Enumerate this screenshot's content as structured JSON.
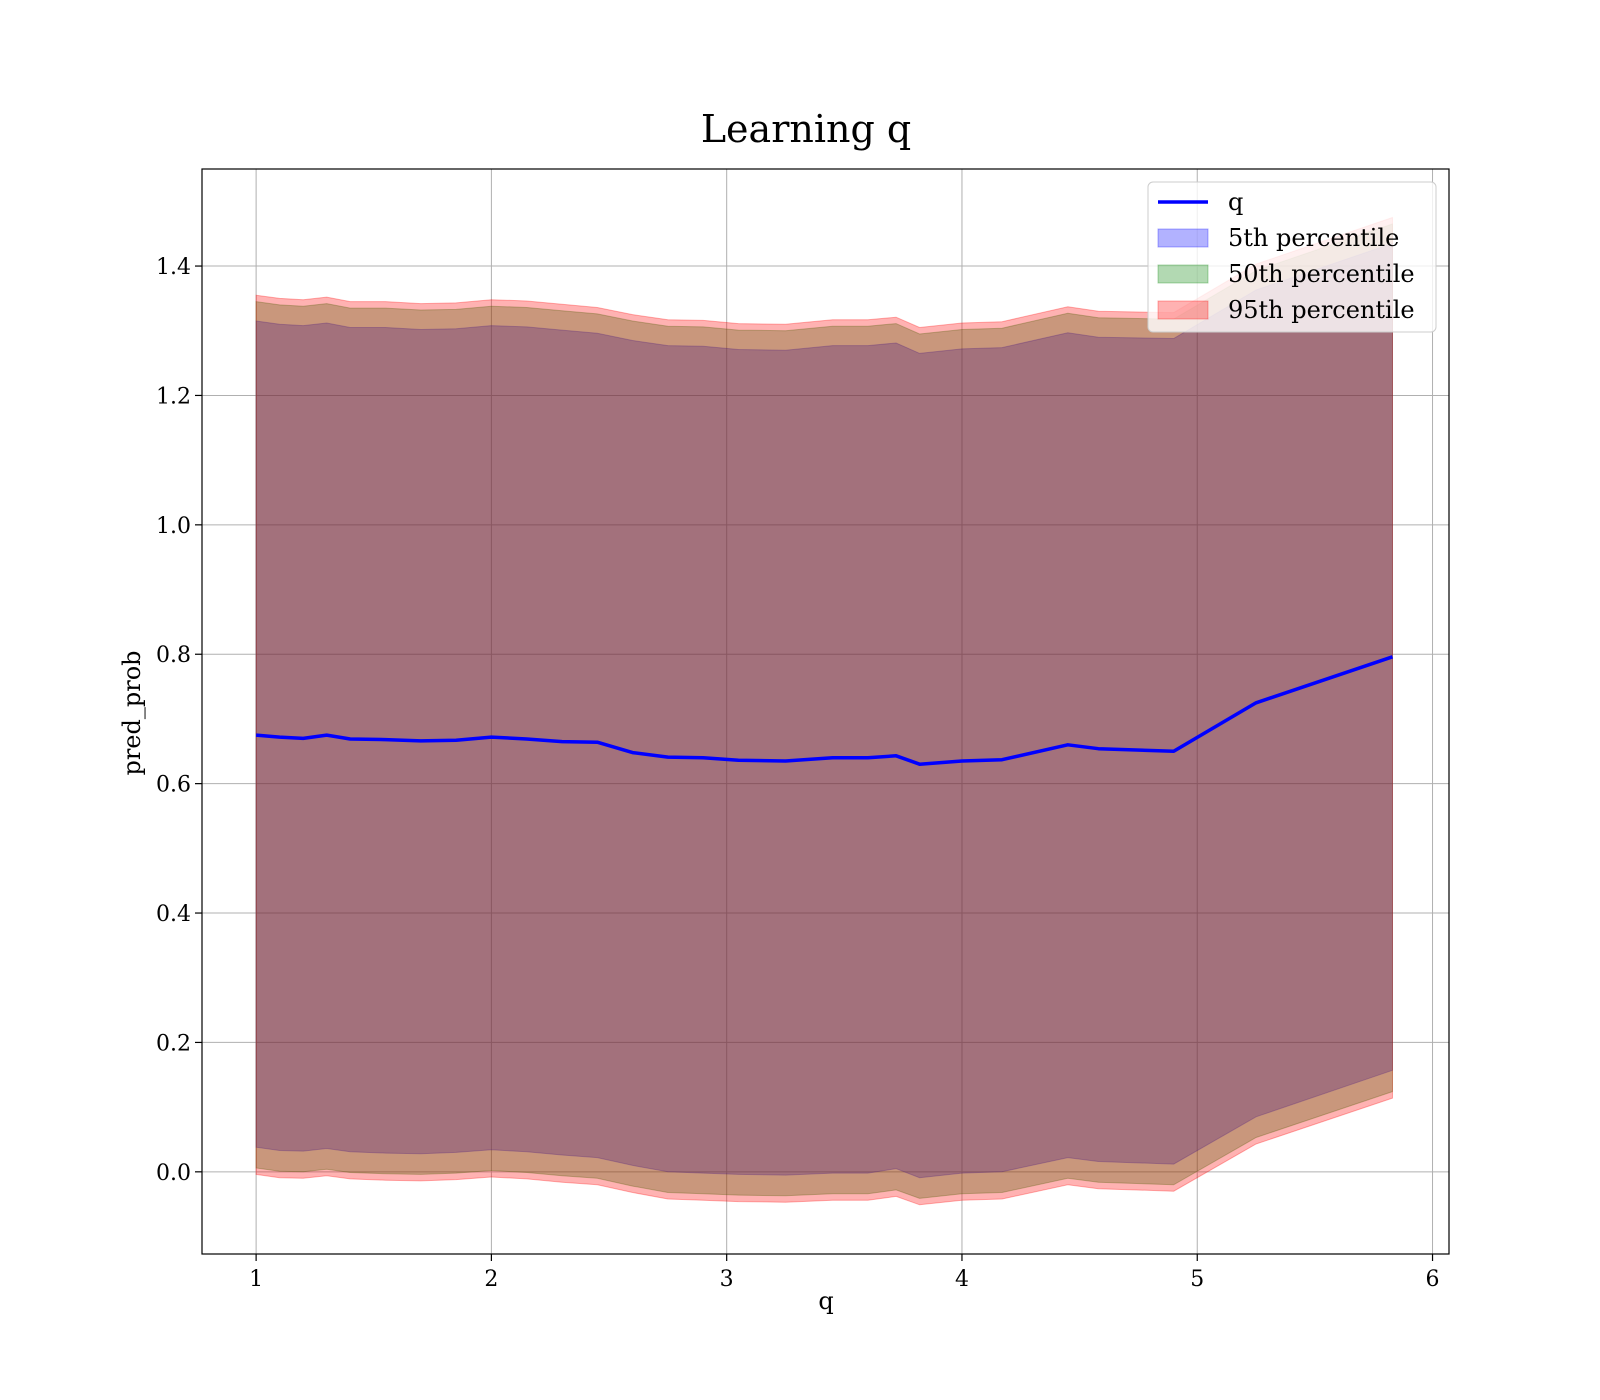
{
  "chart_data": {
    "type": "line",
    "title": "Learning q",
    "xlabel": "q",
    "ylabel": "pred_prob",
    "xlim": [
      0.77,
      6.07
    ],
    "ylim": [
      -0.127,
      1.55
    ],
    "xticks": [
      1,
      2,
      3,
      4,
      5,
      6
    ],
    "yticks": [
      0.0,
      0.2,
      0.4,
      0.6,
      0.8,
      1.0,
      1.2,
      1.4
    ],
    "xtick_labels": [
      "1",
      "2",
      "3",
      "4",
      "5",
      "6"
    ],
    "ytick_labels": [
      "0.0",
      "0.2",
      "0.4",
      "0.6",
      "0.8",
      "1.0",
      "1.2",
      "1.4"
    ],
    "grid": true,
    "legend_position": "top-right",
    "x": [
      1.0,
      1.1,
      1.2,
      1.3,
      1.4,
      1.55,
      1.7,
      1.85,
      2.0,
      2.15,
      2.3,
      2.45,
      2.6,
      2.75,
      2.9,
      3.05,
      3.25,
      3.45,
      3.6,
      3.72,
      3.82,
      4.0,
      4.17,
      4.45,
      4.58,
      4.9,
      5.25,
      5.83
    ],
    "series": [
      {
        "name": "q",
        "kind": "line",
        "color": "#0000ff",
        "values": [
          0.675,
          0.672,
          0.67,
          0.675,
          0.669,
          0.668,
          0.666,
          0.667,
          0.672,
          0.669,
          0.665,
          0.664,
          0.648,
          0.641,
          0.64,
          0.636,
          0.635,
          0.64,
          0.64,
          0.643,
          0.63,
          0.635,
          0.637,
          0.66,
          0.654,
          0.65,
          0.725,
          0.796
        ]
      },
      {
        "name": "5th percentile",
        "kind": "band",
        "color": "#0000ff",
        "alpha": 0.3,
        "lower": [
          0.038,
          0.033,
          0.032,
          0.036,
          0.031,
          0.029,
          0.028,
          0.03,
          0.034,
          0.031,
          0.026,
          0.022,
          0.01,
          0.0,
          -0.002,
          -0.004,
          -0.005,
          -0.002,
          -0.002,
          0.005,
          -0.009,
          -0.002,
          0.0,
          0.022,
          0.016,
          0.012,
          0.085,
          0.157
        ],
        "upper": [
          1.315,
          1.31,
          1.308,
          1.312,
          1.305,
          1.305,
          1.302,
          1.303,
          1.308,
          1.306,
          1.301,
          1.296,
          1.285,
          1.277,
          1.276,
          1.271,
          1.27,
          1.277,
          1.277,
          1.281,
          1.265,
          1.272,
          1.274,
          1.297,
          1.29,
          1.288,
          1.363,
          1.435
        ]
      },
      {
        "name": "50th percentile",
        "kind": "band",
        "color": "#008000",
        "alpha": 0.3,
        "lower": [
          0.006,
          0.001,
          0.0,
          0.004,
          -0.001,
          -0.003,
          -0.004,
          -0.002,
          0.002,
          -0.001,
          -0.006,
          -0.01,
          -0.022,
          -0.032,
          -0.034,
          -0.036,
          -0.037,
          -0.034,
          -0.034,
          -0.028,
          -0.041,
          -0.034,
          -0.032,
          -0.01,
          -0.016,
          -0.02,
          0.053,
          0.124
        ],
        "upper": [
          1.345,
          1.34,
          1.338,
          1.342,
          1.335,
          1.335,
          1.332,
          1.333,
          1.338,
          1.336,
          1.331,
          1.326,
          1.315,
          1.307,
          1.306,
          1.301,
          1.3,
          1.307,
          1.307,
          1.311,
          1.295,
          1.302,
          1.304,
          1.327,
          1.32,
          1.318,
          1.393,
          1.465
        ]
      },
      {
        "name": "95th percentile",
        "kind": "band",
        "color": "#ff0000",
        "alpha": 0.3,
        "lower": [
          -0.004,
          -0.009,
          -0.01,
          -0.006,
          -0.011,
          -0.013,
          -0.014,
          -0.012,
          -0.008,
          -0.011,
          -0.016,
          -0.02,
          -0.032,
          -0.042,
          -0.044,
          -0.046,
          -0.047,
          -0.044,
          -0.044,
          -0.038,
          -0.051,
          -0.044,
          -0.042,
          -0.02,
          -0.026,
          -0.03,
          0.043,
          0.114
        ],
        "upper": [
          1.355,
          1.35,
          1.348,
          1.352,
          1.345,
          1.345,
          1.342,
          1.343,
          1.348,
          1.346,
          1.341,
          1.336,
          1.325,
          1.317,
          1.316,
          1.311,
          1.31,
          1.317,
          1.317,
          1.321,
          1.305,
          1.312,
          1.314,
          1.337,
          1.33,
          1.328,
          1.403,
          1.475
        ]
      }
    ]
  }
}
